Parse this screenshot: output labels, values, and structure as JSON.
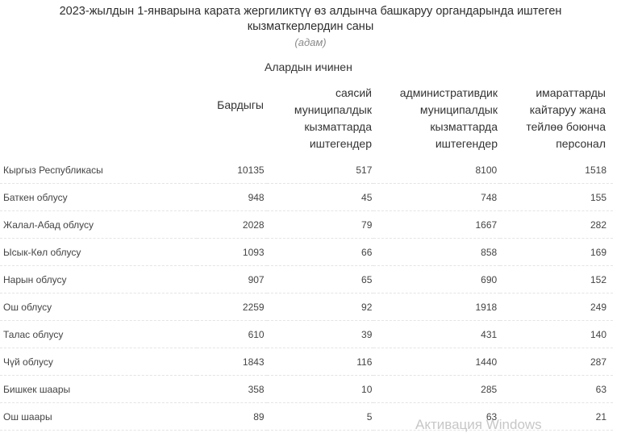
{
  "title_lines": [
    "2023-жылдын 1-январына карата жергиликтүү өз алдынча башкаруу органдарында иштеген",
    "кызматкерлердин саны"
  ],
  "unit": "(адам)",
  "group_header": "Алардын ичинен",
  "columns": {
    "total": "Бардыгы",
    "political": [
      "саясий",
      "муниципалдык",
      "кызматтарда",
      "иштегендер"
    ],
    "administrative": [
      "административдик",
      "муниципалдык",
      "кызматтарда",
      "иштегендер"
    ],
    "technical": [
      "имараттарды",
      "кайтаруу жана",
      "тейлөө боюнча",
      "персонал"
    ]
  },
  "rows": [
    {
      "name": "Кыргыз Республикасы",
      "total": "10135",
      "political": "517",
      "administrative": "8100",
      "technical": "1518"
    },
    {
      "name": "Баткен облусу",
      "total": "948",
      "political": "45",
      "administrative": "748",
      "technical": "155"
    },
    {
      "name": "Жалал-Абад облусу",
      "total": "2028",
      "political": "79",
      "administrative": "1667",
      "technical": "282"
    },
    {
      "name": "Ысык-Көл облусу",
      "total": "1093",
      "political": "66",
      "administrative": "858",
      "technical": "169"
    },
    {
      "name": "Нарын облусу",
      "total": "907",
      "political": "65",
      "administrative": "690",
      "technical": "152"
    },
    {
      "name": "Ош облусу",
      "total": "2259",
      "political": "92",
      "administrative": "1918",
      "technical": "249"
    },
    {
      "name": "Талас облусу",
      "total": "610",
      "political": "39",
      "administrative": "431",
      "technical": "140"
    },
    {
      "name": "Чүй облусу",
      "total": "1843",
      "political": "116",
      "administrative": "1440",
      "technical": "287"
    },
    {
      "name": "Бишкек шаары",
      "total": "358",
      "political": "10",
      "administrative": "285",
      "technical": "63"
    },
    {
      "name": "Ош шаары",
      "total": "89",
      "political": "5",
      "administrative": "63",
      "technical": "21"
    }
  ],
  "watermark": "Активация Windows"
}
